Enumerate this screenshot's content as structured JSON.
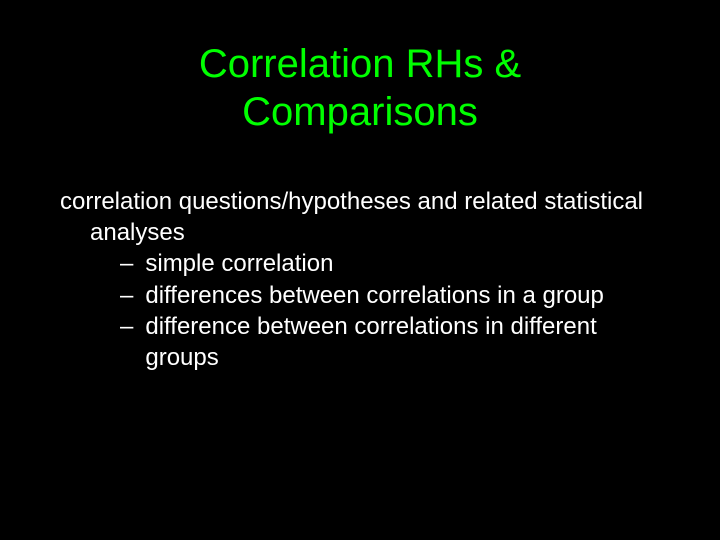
{
  "slide": {
    "title_line1": "Correlation RHs &",
    "title_line2": "Comparisons",
    "intro_line1": "correlation questions/hypotheses and related statistical",
    "intro_line2": "analyses",
    "bullets": [
      "simple correlation",
      "differences between correlations in a group",
      "difference between correlations in different groups"
    ]
  },
  "colors": {
    "background": "#000000",
    "title": "#00ff00",
    "body": "#ffffff"
  },
  "typography": {
    "title_fontsize": 40,
    "body_fontsize": 24,
    "font_family": "Arial"
  }
}
